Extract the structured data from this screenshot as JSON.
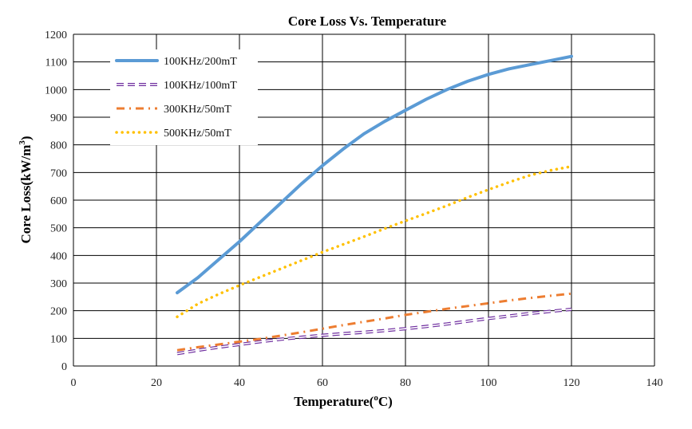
{
  "chart_data": {
    "type": "line",
    "title": "Core Loss Vs. Temperature",
    "xlabel": "Temperature(",
    "xlabel_unit": "C)",
    "xlabel_degree": "o",
    "ylabel": "Core Loss(kW/m",
    "ylabel_sup": "3",
    "ylabel_tail": ")",
    "xlim": [
      0,
      140
    ],
    "ylim": [
      0,
      1200
    ],
    "xticks": [
      0,
      20,
      40,
      60,
      80,
      100,
      120,
      140
    ],
    "yticks": [
      0,
      100,
      200,
      300,
      400,
      500,
      600,
      700,
      800,
      900,
      1000,
      1100,
      1200
    ],
    "grid": true,
    "legend_position": "top-left",
    "series": [
      {
        "name": "100KHz/200mT",
        "color": "#5b9bd5",
        "style": "solid",
        "x": [
          25,
          30,
          35,
          40,
          45,
          50,
          55,
          60,
          65,
          70,
          75,
          80,
          85,
          90,
          95,
          100,
          105,
          110,
          115,
          120
        ],
        "y": [
          265,
          320,
          385,
          450,
          520,
          590,
          660,
          725,
          785,
          840,
          885,
          925,
          965,
          1000,
          1030,
          1055,
          1075,
          1090,
          1105,
          1120
        ]
      },
      {
        "name": "100KHz/100mT",
        "color": "#7030a0",
        "style": "dash-hollow",
        "x": [
          25,
          30,
          35,
          40,
          45,
          50,
          55,
          60,
          65,
          70,
          75,
          80,
          85,
          90,
          95,
          100,
          105,
          110,
          115,
          120
        ],
        "y": [
          45,
          57,
          68,
          78,
          88,
          97,
          104,
          111,
          117,
          122,
          128,
          135,
          143,
          152,
          162,
          172,
          181,
          190,
          198,
          205
        ]
      },
      {
        "name": "300KHz/50mT",
        "color": "#ed7d31",
        "style": "dash-dot",
        "x": [
          25,
          30,
          35,
          40,
          45,
          50,
          55,
          60,
          65,
          70,
          75,
          80,
          85,
          90,
          95,
          100,
          105,
          110,
          115,
          120
        ],
        "y": [
          57,
          68,
          78,
          88,
          98,
          110,
          122,
          135,
          148,
          160,
          172,
          185,
          196,
          207,
          217,
          227,
          237,
          246,
          254,
          262
        ]
      },
      {
        "name": "500KHz/50mT",
        "color": "#ffc000",
        "style": "dotted",
        "x": [
          25,
          30,
          35,
          40,
          45,
          50,
          55,
          60,
          65,
          70,
          75,
          80,
          85,
          90,
          95,
          100,
          105,
          110,
          115,
          120
        ],
        "y": [
          178,
          225,
          260,
          292,
          322,
          352,
          382,
          412,
          440,
          468,
          497,
          525,
          552,
          580,
          610,
          638,
          665,
          690,
          708,
          722
        ]
      }
    ]
  }
}
